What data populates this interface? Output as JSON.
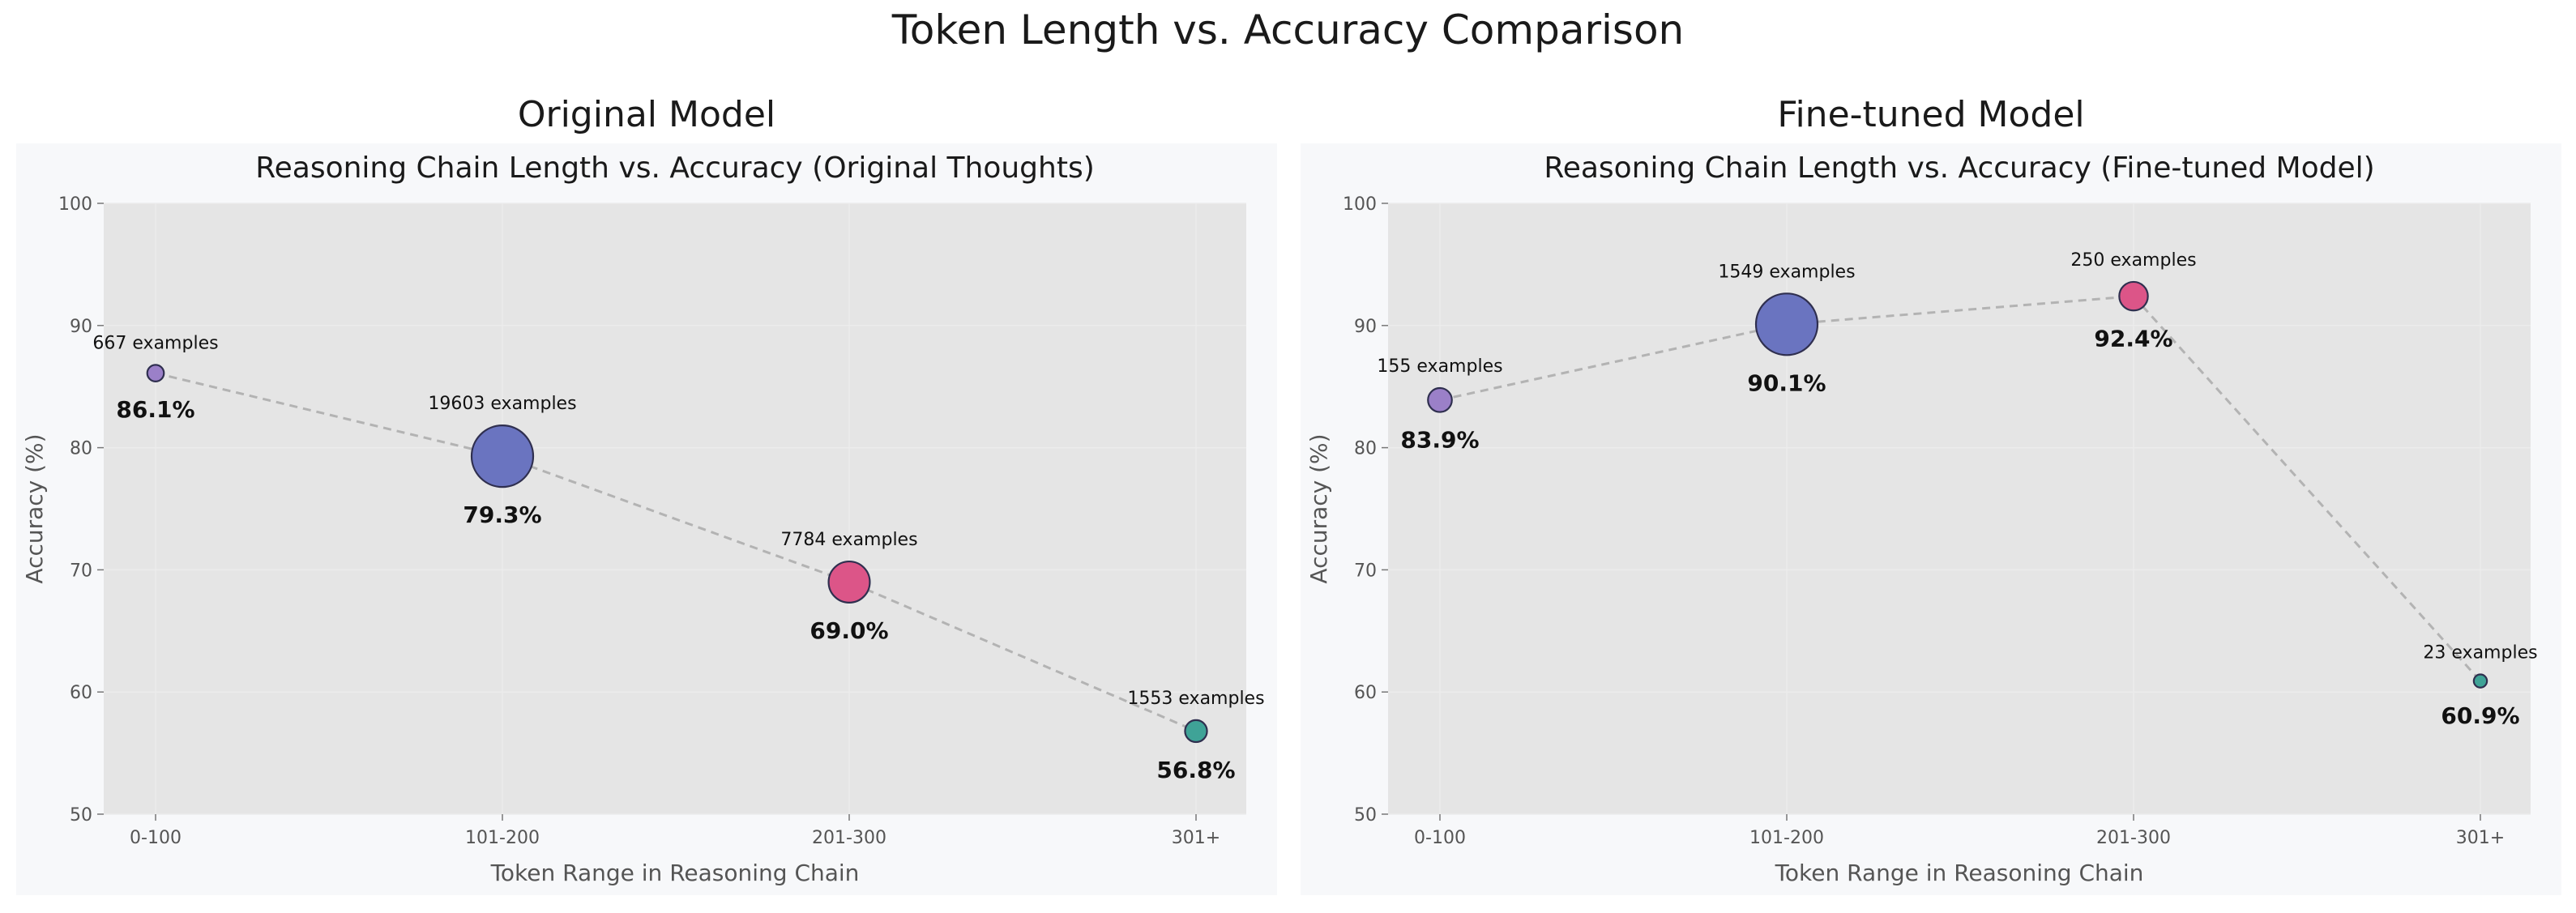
{
  "figure": {
    "title": "Token Length vs. Accuracy Comparison",
    "panel_titles": [
      "Original Model",
      "Fine-tuned Model"
    ]
  },
  "colors": {
    "panel_bg": "#f7f8fa",
    "plot_bg": "#e5e5e5",
    "line": "#b3b3b3",
    "category_colors": [
      "#9b80c8",
      "#6a74c0",
      "#dc5588",
      "#3fa397"
    ]
  },
  "chart_data": [
    {
      "type": "scatter",
      "title": "Reasoning Chain Length vs. Accuracy (Original Thoughts)",
      "xlabel": "Token Range in Reasoning Chain",
      "ylabel": "Accuracy (%)",
      "categories": [
        "0-100",
        "101-200",
        "201-300",
        "301+"
      ],
      "values": [
        86.1,
        79.3,
        69.0,
        56.8
      ],
      "value_labels": [
        "86.1%",
        "79.3%",
        "69.0%",
        "56.8%"
      ],
      "counts": [
        667,
        19603,
        7784,
        1553
      ],
      "count_labels": [
        "667 examples",
        "19603 examples",
        "7784 examples",
        "1553 examples"
      ],
      "ylim": [
        50,
        100
      ],
      "yticks": [
        50,
        60,
        70,
        80,
        90,
        100
      ],
      "grid": true,
      "connecting_line": "dashed"
    },
    {
      "type": "scatter",
      "title": "Reasoning Chain Length vs. Accuracy (Fine-tuned Model)",
      "xlabel": "Token Range in Reasoning Chain",
      "ylabel": "Accuracy (%)",
      "categories": [
        "0-100",
        "101-200",
        "201-300",
        "301+"
      ],
      "values": [
        83.9,
        90.1,
        92.4,
        60.9
      ],
      "value_labels": [
        "83.9%",
        "90.1%",
        "92.4%",
        "60.9%"
      ],
      "counts": [
        155,
        1549,
        250,
        23
      ],
      "count_labels": [
        "155 examples",
        "1549 examples",
        "250 examples",
        "23 examples"
      ],
      "ylim": [
        50,
        100
      ],
      "yticks": [
        50,
        60,
        70,
        80,
        90,
        100
      ],
      "grid": true,
      "connecting_line": "dashed"
    }
  ]
}
